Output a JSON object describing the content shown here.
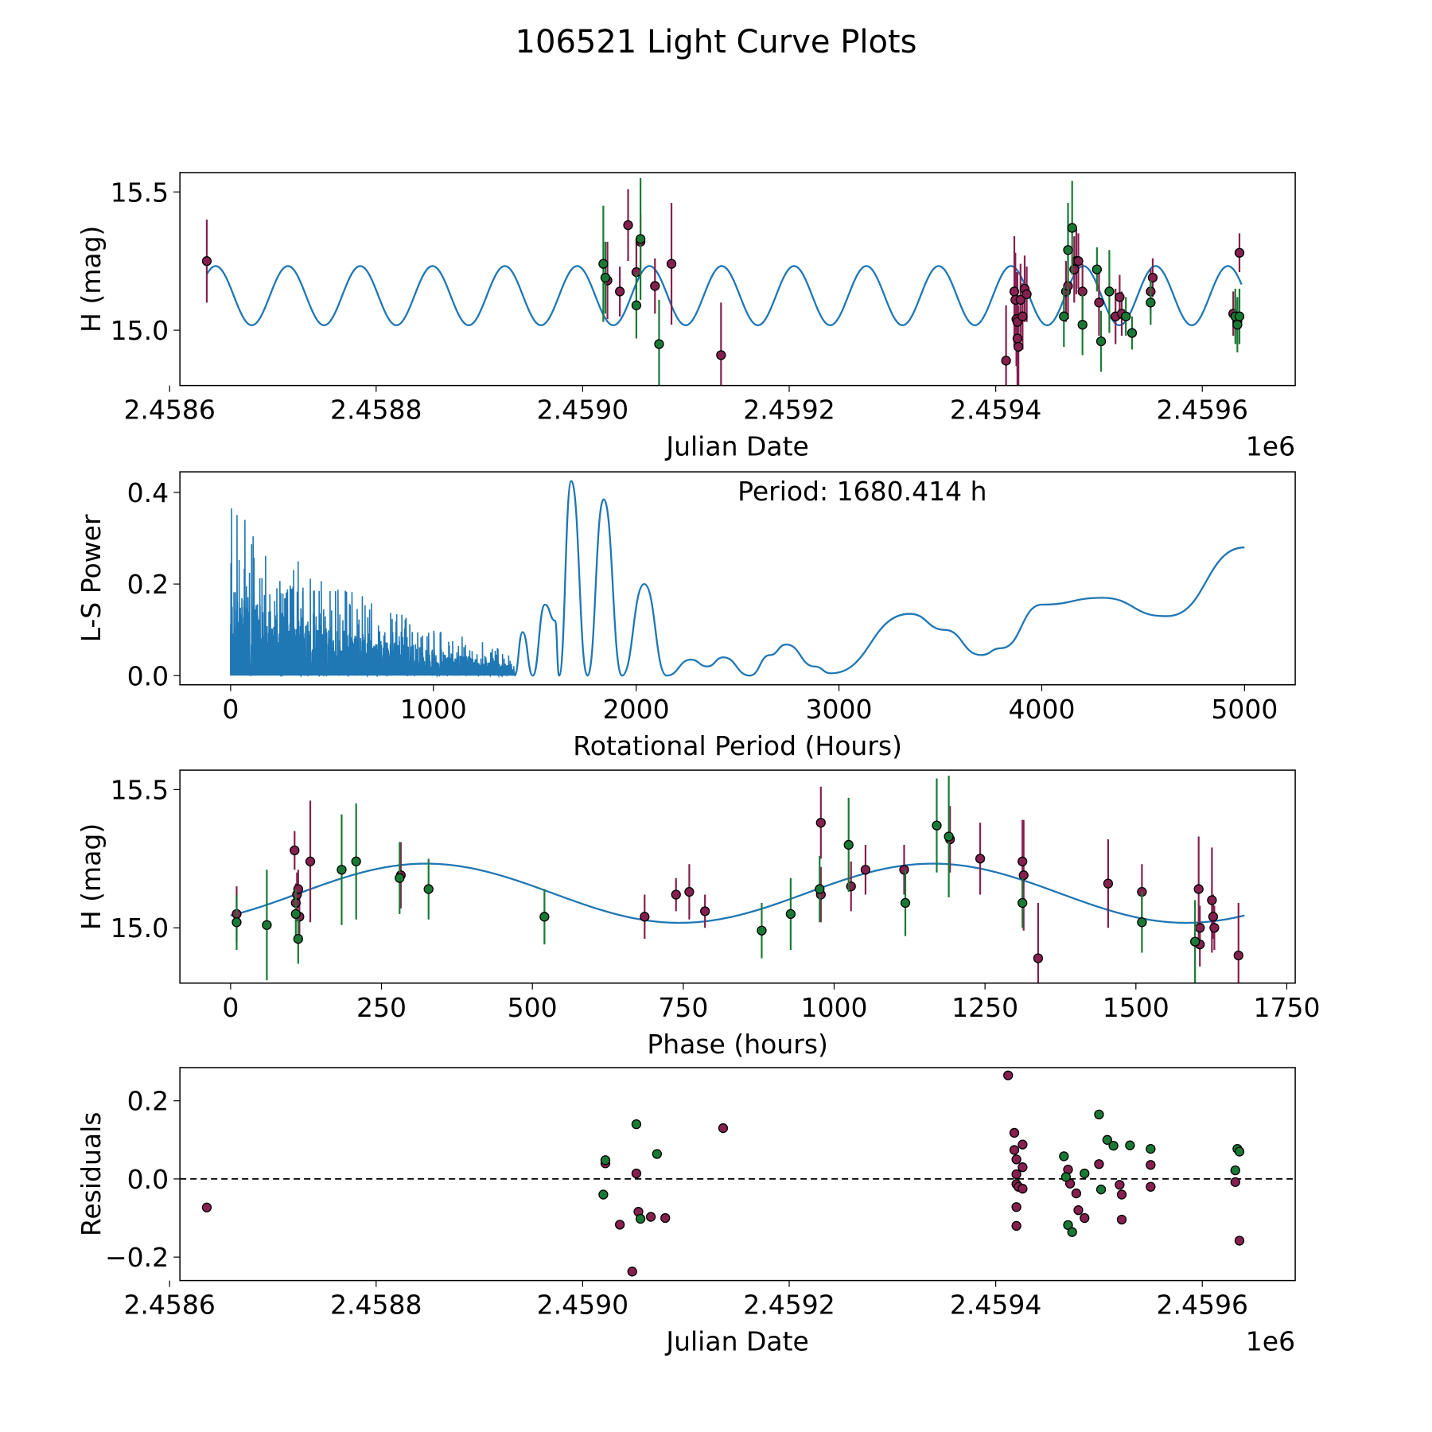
{
  "figure": {
    "title": "106521 Light Curve Plots"
  },
  "colors": {
    "model_line": "#1f77b4",
    "series_a": "#85204f",
    "series_b": "#1a7a35",
    "marker_edge": "#000000",
    "axis": "#000000"
  },
  "chart_data": [
    {
      "id": "lightcurve",
      "type": "scatter",
      "title": "",
      "xlabel": "Julian Date",
      "ylabel": "H (mag)",
      "x_offset_label": "1e6",
      "xlim": [
        2.45861,
        2.45969
      ],
      "ylim": [
        14.8,
        15.57
      ],
      "xticks": [
        2.4586,
        2.4588,
        2.459,
        2.4592,
        2.4594,
        2.4596
      ],
      "xtick_labels": [
        "2.4586",
        "2.4588",
        "2.4590",
        "2.4592",
        "2.4594",
        "2.4596"
      ],
      "yticks": [
        15.0,
        15.5
      ],
      "ytick_labels": [
        "15.0",
        "15.5"
      ],
      "model": {
        "type": "sinusoid",
        "mean": 15.125,
        "amplitude": 0.107,
        "period_days": 70.017,
        "x_start": 2.458636,
        "x_end": 2.459638,
        "phase0": 2.458636
      },
      "series": [
        {
          "name": "series_a",
          "color_key": "series_a",
          "points": [
            [
              2.458636,
              15.25,
              0.15
            ],
            [
              2.459024,
              15.18,
              0.14
            ],
            [
              2.459036,
              15.14,
              0.09
            ],
            [
              2.459044,
              15.38,
              0.13
            ],
            [
              2.459052,
              15.21,
              0.12
            ],
            [
              2.459056,
              15.32,
              0.1
            ],
            [
              2.45907,
              15.16,
              0.1
            ],
            [
              2.459086,
              15.24,
              0.22
            ],
            [
              2.459134,
              14.91,
              0.19
            ],
            [
              2.45941,
              14.89,
              0.2
            ],
            [
              2.459418,
              15.14,
              0.2
            ],
            [
              2.459419,
              15.11,
              0.17
            ],
            [
              2.45942,
              15.04,
              0.17
            ],
            [
              2.459421,
              15.03,
              0.18
            ],
            [
              2.459421,
              14.97,
              0.2
            ],
            [
              2.459422,
              14.94,
              0.15
            ],
            [
              2.459424,
              15.11,
              0.13
            ],
            [
              2.459426,
              15.05,
              0.12
            ],
            [
              2.459428,
              15.15,
              0.12
            ],
            [
              2.45943,
              15.13,
              0.1
            ],
            [
              2.459468,
              15.14,
              0.11
            ],
            [
              2.45947,
              15.16,
              0.12
            ],
            [
              2.459476,
              15.22,
              0.12
            ],
            [
              2.459478,
              15.25,
              0.12
            ],
            [
              2.45948,
              15.25,
              0.1
            ],
            [
              2.459484,
              15.14,
              0.1
            ],
            [
              2.4595,
              15.1,
              0.12
            ],
            [
              2.459516,
              15.05,
              0.1
            ],
            [
              2.45952,
              15.12,
              0.08
            ],
            [
              2.459522,
              15.06,
              0.08
            ],
            [
              2.45955,
              15.14,
              0.08
            ],
            [
              2.459552,
              15.19,
              0.07
            ],
            [
              2.45963,
              15.06,
              0.08
            ],
            [
              2.459634,
              15.03,
              0.08
            ],
            [
              2.459636,
              15.28,
              0.07
            ]
          ]
        },
        {
          "name": "series_b",
          "color_key": "series_b",
          "points": [
            [
              2.45902,
              15.24,
              0.21
            ],
            [
              2.459022,
              15.19,
              0.13
            ],
            [
              2.459052,
              15.09,
              0.12
            ],
            [
              2.459056,
              15.33,
              0.22
            ],
            [
              2.459074,
              14.95,
              0.16
            ],
            [
              2.459466,
              15.05,
              0.11
            ],
            [
              2.45947,
              15.29,
              0.17
            ],
            [
              2.459474,
              15.37,
              0.17
            ],
            [
              2.459484,
              15.02,
              0.11
            ],
            [
              2.459498,
              15.22,
              0.08
            ],
            [
              2.459502,
              14.96,
              0.11
            ],
            [
              2.45951,
              15.14,
              0.15
            ],
            [
              2.459526,
              15.05,
              0.07
            ],
            [
              2.459532,
              14.99,
              0.06
            ],
            [
              2.45955,
              15.1,
              0.08
            ],
            [
              2.459632,
              15.05,
              0.1
            ],
            [
              2.459634,
              15.02,
              0.1
            ],
            [
              2.459636,
              15.05,
              0.1
            ]
          ]
        }
      ]
    },
    {
      "id": "periodogram",
      "type": "line",
      "title": "",
      "xlabel": "Rotational Period (Hours)",
      "ylabel": "L-S Power",
      "xlim": [
        -250,
        5250
      ],
      "ylim": [
        -0.02,
        0.445
      ],
      "xticks": [
        0,
        1000,
        2000,
        3000,
        4000,
        5000
      ],
      "xtick_labels": [
        "0",
        "1000",
        "2000",
        "3000",
        "4000",
        "5000"
      ],
      "yticks": [
        0.0,
        0.2,
        0.4
      ],
      "ytick_labels": [
        "0.0",
        "0.2",
        "0.4"
      ],
      "annotation": "Period: 1680.414 h",
      "peaks": [
        [
          1440,
          0.095
        ],
        [
          1550,
          0.155
        ],
        [
          1600,
          0.12
        ],
        [
          1680,
          0.425
        ],
        [
          1840,
          0.385
        ],
        [
          2040,
          0.2
        ],
        [
          2270,
          0.035
        ],
        [
          2430,
          0.04
        ],
        [
          2660,
          0.045
        ],
        [
          2740,
          0.068
        ],
        [
          2880,
          0.02
        ],
        [
          3350,
          0.135
        ],
        [
          3520,
          0.1
        ],
        [
          4000,
          0.155
        ],
        [
          4300,
          0.17
        ],
        [
          4600,
          0.13
        ],
        [
          5000,
          0.28
        ]
      ],
      "troughs": [
        [
          1490,
          0.0
        ],
        [
          1620,
          0.0
        ],
        [
          1760,
          0.0
        ],
        [
          1930,
          0.0
        ],
        [
          2150,
          0.0
        ],
        [
          2350,
          0.02
        ],
        [
          2560,
          0.0
        ],
        [
          2960,
          0.005
        ],
        [
          3700,
          0.045
        ],
        [
          3800,
          0.06
        ],
        [
          4620,
          0.13
        ]
      ],
      "noise_region": {
        "x_start": 0,
        "x_end": 1400,
        "max_power_start": 0.4,
        "max_power_end": 0.05
      }
    },
    {
      "id": "phased",
      "type": "scatter",
      "title": "",
      "xlabel": "Phase (hours)",
      "ylabel": "H (mag)",
      "xlim": [
        -84,
        1764
      ],
      "ylim": [
        14.8,
        15.57
      ],
      "xticks": [
        0,
        250,
        500,
        750,
        1000,
        1250,
        1500,
        1750
      ],
      "xtick_labels": [
        "0",
        "250",
        "500",
        "750",
        "1000",
        "1250",
        "1500",
        "1750"
      ],
      "yticks": [
        15.0,
        15.5
      ],
      "ytick_labels": [
        "15.0",
        "15.5"
      ],
      "model": {
        "type": "double_sinusoid",
        "mean": 15.125,
        "amplitude": 0.107,
        "x_start": 0,
        "x_end": 1680
      },
      "series": [
        {
          "name": "series_a",
          "color_key": "series_a",
          "points": [
            [
              10,
              15.05,
              0.1
            ],
            [
              106,
              15.28,
              0.07
            ],
            [
              108,
              15.09,
              0.07
            ],
            [
              110,
              15.12,
              0.08
            ],
            [
              112,
              15.14,
              0.07
            ],
            [
              114,
              15.04,
              0.07
            ],
            [
              132,
              15.24,
              0.22
            ],
            [
              282,
              15.19,
              0.12
            ],
            [
              686,
              15.04,
              0.08
            ],
            [
              738,
              15.12,
              0.06
            ],
            [
              760,
              15.13,
              0.1
            ],
            [
              786,
              15.06,
              0.06
            ],
            [
              978,
              15.38,
              0.13
            ],
            [
              978,
              15.12,
              0.1
            ],
            [
              1028,
              15.15,
              0.09
            ],
            [
              1052,
              15.21,
              0.09
            ],
            [
              1116,
              15.21,
              0.09
            ],
            [
              1192,
              15.32,
              0.12
            ],
            [
              1242,
              15.25,
              0.13
            ],
            [
              1312,
              15.24,
              0.15
            ],
            [
              1314,
              15.19,
              0.2
            ],
            [
              1338,
              14.89,
              0.2
            ],
            [
              1454,
              15.16,
              0.16
            ],
            [
              1510,
              15.13,
              0.1
            ],
            [
              1604,
              15.14,
              0.19
            ],
            [
              1606,
              15.0,
              0.08
            ],
            [
              1606,
              14.94,
              0.08
            ],
            [
              1626,
              15.1,
              0.19
            ],
            [
              1628,
              15.04,
              0.08
            ],
            [
              1630,
              15.0,
              0.08
            ],
            [
              1670,
              14.9,
              0.19
            ]
          ]
        },
        {
          "name": "series_b",
          "color_key": "series_b",
          "points": [
            [
              10,
              15.02,
              0.1
            ],
            [
              60,
              15.01,
              0.2
            ],
            [
              108,
              15.05,
              0.09
            ],
            [
              112,
              14.96,
              0.09
            ],
            [
              184,
              15.21,
              0.2
            ],
            [
              208,
              15.24,
              0.21
            ],
            [
              280,
              15.18,
              0.13
            ],
            [
              328,
              15.14,
              0.11
            ],
            [
              520,
              15.04,
              0.1
            ],
            [
              880,
              14.99,
              0.1
            ],
            [
              928,
              15.05,
              0.13
            ],
            [
              976,
              15.14,
              0.12
            ],
            [
              1024,
              15.3,
              0.17
            ],
            [
              1118,
              15.09,
              0.12
            ],
            [
              1170,
              15.37,
              0.17
            ],
            [
              1190,
              15.33,
              0.22
            ],
            [
              1312,
              15.09,
              0.09
            ],
            [
              1510,
              15.02,
              0.11
            ],
            [
              1598,
              14.95,
              0.15
            ]
          ]
        }
      ]
    },
    {
      "id": "residuals",
      "type": "scatter",
      "title": "",
      "xlabel": "Julian Date",
      "ylabel": "Residuals",
      "x_offset_label": "1e6",
      "xlim": [
        2.45861,
        2.45969
      ],
      "ylim": [
        -0.26,
        0.285
      ],
      "xticks": [
        2.4586,
        2.4588,
        2.459,
        2.4592,
        2.4594,
        2.4596
      ],
      "xtick_labels": [
        "2.4586",
        "2.4588",
        "2.4590",
        "2.4592",
        "2.4594",
        "2.4596"
      ],
      "yticks": [
        -0.2,
        0.0,
        0.2
      ],
      "ytick_labels": [
        "−0.2",
        "0.0",
        "0.2"
      ],
      "reference_line": 0.0,
      "series": [
        {
          "name": "series_a",
          "color_key": "series_a",
          "points": [
            [
              2.458636,
              -0.073
            ],
            [
              2.459022,
              0.04
            ],
            [
              2.459036,
              -0.117
            ],
            [
              2.459048,
              -0.237
            ],
            [
              2.459052,
              0.014
            ],
            [
              2.459054,
              -0.084
            ],
            [
              2.459066,
              -0.097
            ],
            [
              2.45908,
              -0.1
            ],
            [
              2.459136,
              0.13
            ],
            [
              2.459412,
              0.265
            ],
            [
              2.459418,
              0.118
            ],
            [
              2.459418,
              0.074
            ],
            [
              2.45942,
              0.05
            ],
            [
              2.45942,
              0.012
            ],
            [
              2.45942,
              -0.013
            ],
            [
              2.45942,
              -0.072
            ],
            [
              2.45942,
              -0.12
            ],
            [
              2.459422,
              -0.02
            ],
            [
              2.459426,
              0.088
            ],
            [
              2.459426,
              0.03
            ],
            [
              2.459426,
              -0.025
            ],
            [
              2.45947,
              0.024
            ],
            [
              2.459472,
              -0.012
            ],
            [
              2.459478,
              -0.037
            ],
            [
              2.45948,
              -0.08
            ],
            [
              2.459486,
              -0.1
            ],
            [
              2.4595,
              0.038
            ],
            [
              2.45952,
              -0.015
            ],
            [
              2.459522,
              -0.04
            ],
            [
              2.459522,
              -0.104
            ],
            [
              2.45955,
              0.036
            ],
            [
              2.45955,
              -0.02
            ],
            [
              2.459632,
              -0.008
            ],
            [
              2.459636,
              -0.158
            ]
          ]
        },
        {
          "name": "series_b",
          "color_key": "series_b",
          "points": [
            [
              2.45902,
              -0.04
            ],
            [
              2.459022,
              0.048
            ],
            [
              2.459052,
              0.14
            ],
            [
              2.459056,
              -0.102
            ],
            [
              2.459072,
              0.064
            ],
            [
              2.459466,
              0.058
            ],
            [
              2.459468,
              0.005
            ],
            [
              2.45947,
              -0.118
            ],
            [
              2.459474,
              -0.136
            ],
            [
              2.459486,
              0.014
            ],
            [
              2.4595,
              0.165
            ],
            [
              2.459502,
              -0.027
            ],
            [
              2.459508,
              0.1
            ],
            [
              2.459514,
              0.085
            ],
            [
              2.45953,
              0.086
            ],
            [
              2.45955,
              0.077
            ],
            [
              2.459632,
              0.022
            ],
            [
              2.459634,
              0.077
            ],
            [
              2.459636,
              0.07
            ]
          ]
        }
      ]
    }
  ]
}
